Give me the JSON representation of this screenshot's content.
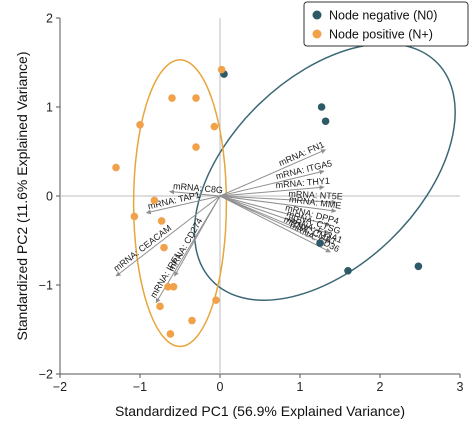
{
  "chart_data": {
    "type": "scatter",
    "title": "",
    "xlabel": "Standardized PC1 (56.9% Explained Variance)",
    "ylabel": "Standardized PC2 (11.6% Explained Variance)",
    "xlim": [
      -2,
      3
    ],
    "ylim": [
      -2,
      2
    ],
    "x_ticks": [
      -2,
      -1,
      0,
      1,
      2,
      3
    ],
    "y_ticks": [
      -2,
      -1,
      0,
      1,
      2
    ],
    "x_tick_labels": [
      "−2",
      "−1",
      "0",
      "1",
      "2",
      "3"
    ],
    "y_tick_labels": [
      "−2",
      "−1",
      "0",
      "1",
      "2"
    ],
    "grid": false,
    "legend_position": "top-right",
    "series": [
      {
        "name": "Node negative (N0)",
        "color": "#2e5966",
        "ellipse_color": "#3c6875",
        "points": [
          {
            "x": 0.05,
            "y": 1.37
          },
          {
            "x": 1.27,
            "y": 1.0
          },
          {
            "x": 1.32,
            "y": 0.84
          },
          {
            "x": 1.25,
            "y": -0.53
          },
          {
            "x": 1.6,
            "y": -0.84
          },
          {
            "x": 2.48,
            "y": -0.79
          }
        ],
        "ellipse": {
          "cx": 1.31,
          "cy": 0.27,
          "rx": 1.18,
          "ry": 1.76,
          "rotation_deg": 46
        }
      },
      {
        "name": "Node positive (N+)",
        "color": "#f0a14a",
        "ellipse_color": "#e8a53c",
        "points": [
          {
            "x": 0.02,
            "y": 1.42
          },
          {
            "x": -0.6,
            "y": 1.1
          },
          {
            "x": -0.3,
            "y": 1.1
          },
          {
            "x": -1.0,
            "y": 0.8
          },
          {
            "x": -0.07,
            "y": 0.78
          },
          {
            "x": -0.3,
            "y": 0.55
          },
          {
            "x": -1.3,
            "y": 0.32
          },
          {
            "x": -0.82,
            "y": -0.05
          },
          {
            "x": -1.07,
            "y": -0.23
          },
          {
            "x": -0.73,
            "y": -0.28
          },
          {
            "x": -0.7,
            "y": -0.58
          },
          {
            "x": -0.65,
            "y": -1.02
          },
          {
            "x": -0.58,
            "y": -1.02
          },
          {
            "x": -0.75,
            "y": -1.24
          },
          {
            "x": -0.05,
            "y": -1.17
          },
          {
            "x": -0.35,
            "y": -1.4
          },
          {
            "x": -0.62,
            "y": -1.55
          }
        ],
        "ellipse": {
          "cx": -0.5,
          "cy": -0.08,
          "rx": 0.58,
          "ry": 1.61,
          "rotation_deg": 0
        }
      }
    ],
    "loadings": {
      "color": "#909090",
      "origin": [
        0,
        0
      ],
      "vectors": [
        {
          "label": "mRNA: FN1",
          "x": 1.32,
          "y": 0.52
        },
        {
          "label": "mRNA: ITGA5",
          "x": 1.3,
          "y": 0.28
        },
        {
          "label": "mRNA: THY1",
          "x": 1.3,
          "y": 0.1
        },
        {
          "label": "mRNA: NT5E",
          "x": 1.45,
          "y": -0.07
        },
        {
          "label": "mRNA: MME",
          "x": 1.45,
          "y": -0.17
        },
        {
          "label": "mRNA: DPP4",
          "x": 1.38,
          "y": -0.33
        },
        {
          "label": "mRNA: CTSG",
          "x": 1.38,
          "y": -0.43
        },
        {
          "label": "mRNA: F13A1",
          "x": 1.38,
          "y": -0.52
        },
        {
          "label": "mRNA: CD36",
          "x": 1.38,
          "y": -0.63
        },
        {
          "label": "mRNA: CMA1",
          "x": 1.32,
          "y": -0.54
        },
        {
          "label": "mRNA: C8G",
          "x": -0.63,
          "y": 0.05
        },
        {
          "label": "mRNA: TAP1",
          "x": -0.92,
          "y": -0.19
        },
        {
          "label": "mRNA: CEACAM",
          "x": -1.3,
          "y": -0.9
        },
        {
          "label": "mRNA: IRF1",
          "x": -0.8,
          "y": -1.2
        },
        {
          "label": "mRNA: CD274",
          "x": -0.57,
          "y": -0.9
        }
      ]
    }
  }
}
